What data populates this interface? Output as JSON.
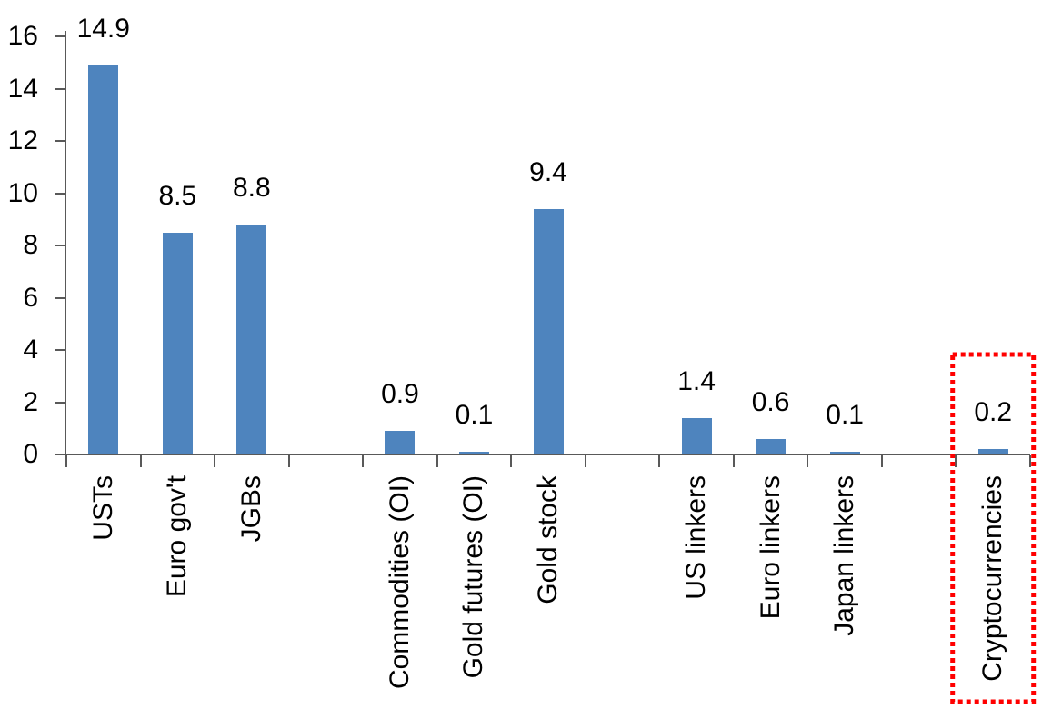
{
  "chart_data": {
    "type": "bar",
    "title": "",
    "xlabel": "",
    "ylabel": "",
    "categories": [
      "USTs",
      "Euro gov't",
      "JGBs",
      "Commodities (OI)",
      "Gold futures (OI)",
      "Gold stock",
      "US linkers",
      "Euro linkers",
      "Japan linkers",
      "Cryptocurrencies"
    ],
    "values": [
      14.9,
      8.5,
      8.8,
      0.9,
      0.1,
      9.4,
      1.4,
      0.6,
      0.1,
      0.2
    ],
    "data_labels": [
      "14.9",
      "8.5",
      "8.8",
      "0.9",
      "0.1",
      "9.4",
      "1.4",
      "0.6",
      "0.1",
      "0.2"
    ],
    "slots": [
      0,
      1,
      2,
      4,
      5,
      6,
      8,
      9,
      10,
      12
    ],
    "slot_count": 13,
    "ylim": [
      0,
      16
    ],
    "yticks": [
      0,
      2,
      4,
      6,
      8,
      10,
      12,
      14,
      16
    ],
    "grid": false,
    "legend_position": "none",
    "x_tick_label_rotation": -90,
    "colors": {
      "bar": "#4E84BE",
      "axis": "#595959",
      "text": "#000000",
      "highlight_box": "#FF0000",
      "background": "#FFFFFF"
    },
    "annotations": [
      {
        "kind": "dotted-rectangle",
        "target_category": "Cryptocurrencies",
        "color": "#FF0000"
      }
    ]
  }
}
